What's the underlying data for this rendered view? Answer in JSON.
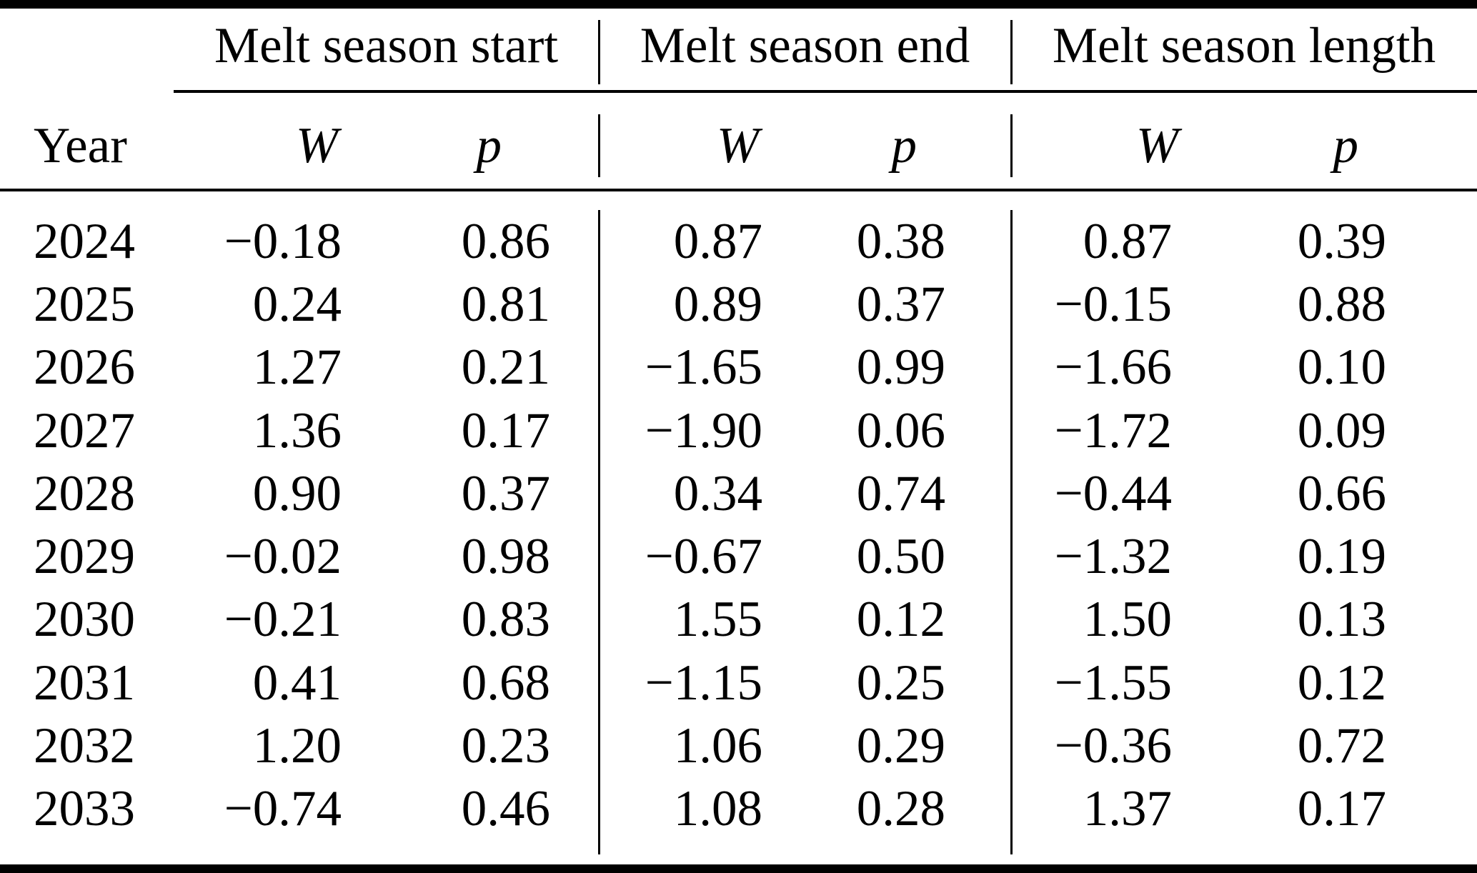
{
  "table": {
    "year_label": "Year",
    "group_headers": [
      "Melt season start",
      "Melt season end",
      "Melt season length"
    ],
    "sub_headers": [
      "W",
      "p",
      "W",
      "p",
      "W",
      "p"
    ],
    "rows": [
      {
        "year": "2024",
        "sw": "−0.18",
        "sp": "0.86",
        "ew": "0.87",
        "ep": "0.38",
        "lw": "0.87",
        "lp": "0.39"
      },
      {
        "year": "2025",
        "sw": "0.24",
        "sp": "0.81",
        "ew": "0.89",
        "ep": "0.37",
        "lw": "−0.15",
        "lp": "0.88"
      },
      {
        "year": "2026",
        "sw": "1.27",
        "sp": "0.21",
        "ew": "−1.65",
        "ep": "0.99",
        "lw": "−1.66",
        "lp": "0.10"
      },
      {
        "year": "2027",
        "sw": "1.36",
        "sp": "0.17",
        "ew": "−1.90",
        "ep": "0.06",
        "lw": "−1.72",
        "lp": "0.09"
      },
      {
        "year": "2028",
        "sw": "0.90",
        "sp": "0.37",
        "ew": "0.34",
        "ep": "0.74",
        "lw": "−0.44",
        "lp": "0.66"
      },
      {
        "year": "2029",
        "sw": "−0.02",
        "sp": "0.98",
        "ew": "−0.67",
        "ep": "0.50",
        "lw": "−1.32",
        "lp": "0.19"
      },
      {
        "year": "2030",
        "sw": "−0.21",
        "sp": "0.83",
        "ew": "1.55",
        "ep": "0.12",
        "lw": "1.50",
        "lp": "0.13"
      },
      {
        "year": "2031",
        "sw": "0.41",
        "sp": "0.68",
        "ew": "−1.15",
        "ep": "0.25",
        "lw": "−1.55",
        "lp": "0.12"
      },
      {
        "year": "2032",
        "sw": "1.20",
        "sp": "0.23",
        "ew": "1.06",
        "ep": "0.29",
        "lw": "−0.36",
        "lp": "0.72"
      },
      {
        "year": "2033",
        "sw": "−0.74",
        "sp": "0.46",
        "ew": "1.08",
        "ep": "0.28",
        "lw": "1.37",
        "lp": "0.17"
      }
    ]
  }
}
